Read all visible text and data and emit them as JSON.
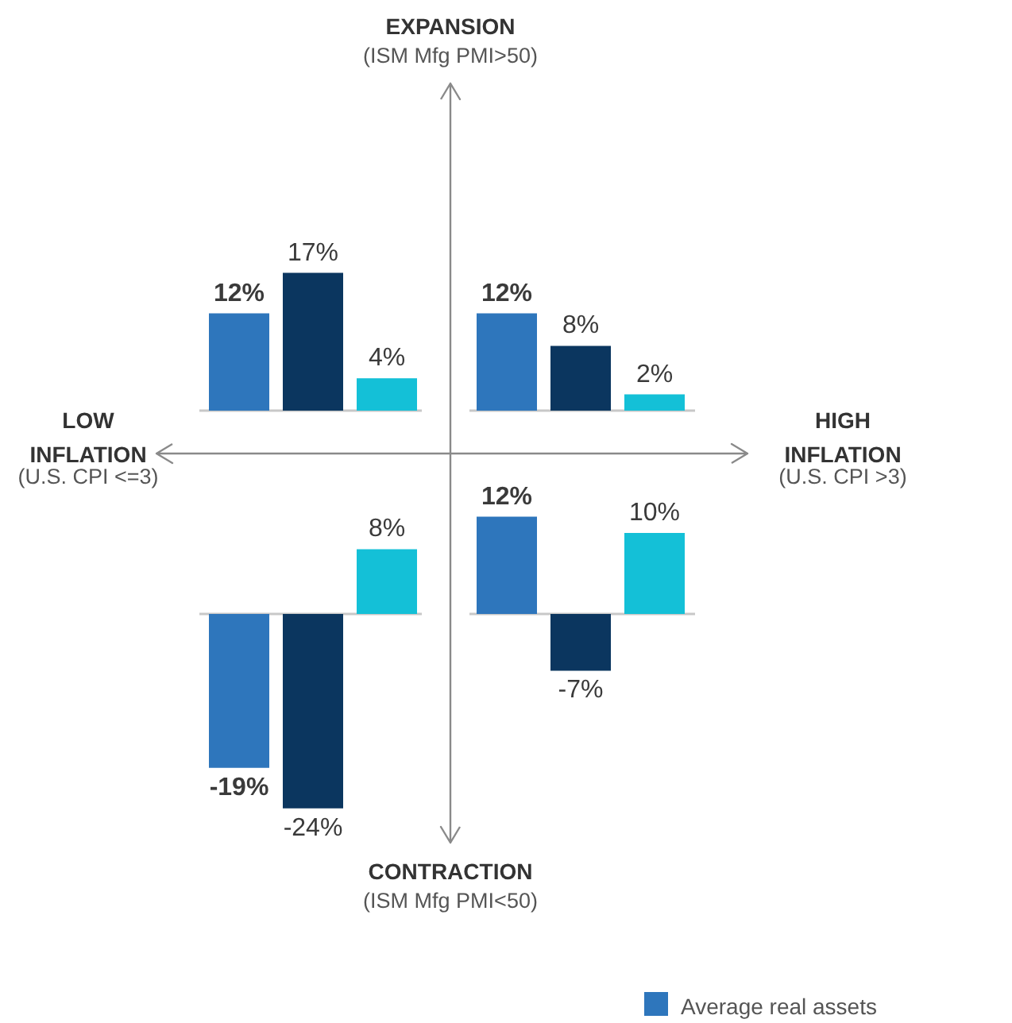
{
  "chart_data": [
    {
      "type": "bar",
      "categories": [
        null
      ],
      "legend": "bottom right",
      "annotations": [
        "EXPANSION",
        "(ISM Mfg PMI>50)",
        "CONTRACTION",
        "(ISM Mfg PMI<50)",
        "LOW\nINFLATION",
        "(U.S. CPI <=3)",
        "HIGH\nINFLATION",
        "(U.S. CPI >3)"
      ],
      "series": [
        {
          "name": "Average real assets",
          "color": "#2e76bc",
          "values": [
            12
          ],
          "value_labels": [
            "12%"
          ]
        },
        {
          "color": "#0b365f",
          "values": [
            17
          ],
          "value_labels": [
            "17%"
          ]
        },
        {
          "color": "#14c0d7",
          "values": [
            4
          ],
          "value_labels": [
            "4%"
          ]
        }
      ]
    },
    {
      "type": "bar",
      "categories": [
        null
      ],
      "series": [
        {
          "color": "#2e76bc",
          "values": [
            12
          ],
          "value_labels": [
            "12%"
          ]
        },
        {
          "color": "#0b365f",
          "values": [
            8
          ],
          "value_labels": [
            "8%"
          ]
        },
        {
          "color": "#14c0d7",
          "values": [
            2
          ],
          "value_labels": [
            "2%"
          ]
        }
      ]
    },
    {
      "type": "bar",
      "categories": [
        null
      ],
      "series": [
        {
          "color": "#2e76bc",
          "values": [
            -19
          ],
          "value_labels": [
            "-19%"
          ]
        },
        {
          "color": "#0b365f",
          "values": [
            -24
          ],
          "value_labels": [
            "-24%"
          ]
        },
        {
          "color": "#14c0d7",
          "values": [
            8
          ],
          "value_labels": [
            "8%"
          ]
        }
      ]
    },
    {
      "type": "bar",
      "categories": [
        null
      ],
      "series": [
        {
          "color": "#2e76bc",
          "values": [
            12
          ],
          "value_labels": [
            "12%"
          ]
        },
        {
          "color": "#0b365f",
          "values": [
            -7
          ],
          "value_labels": [
            "-7%"
          ]
        },
        {
          "color": "#14c0d7",
          "values": [
            10
          ],
          "value_labels": [
            "10%"
          ]
        }
      ]
    }
  ]
}
